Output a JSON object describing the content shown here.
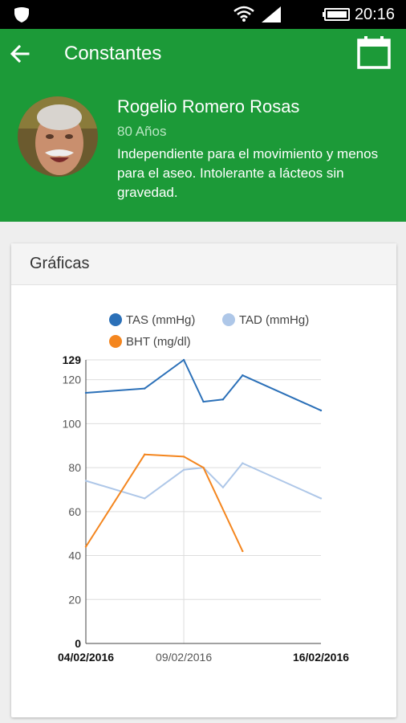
{
  "status_bar": {
    "time": "20:16"
  },
  "app_bar": {
    "title": "Constantes"
  },
  "patient": {
    "name": "Rogelio Romero Rosas",
    "age": "80 Años",
    "notes": "Independiente para el movimiento y menos para el aseo. Intolerante a lácteos sin gravedad."
  },
  "card": {
    "title": "Gráficas"
  },
  "chart_data": {
    "type": "line",
    "x_tick_labels": [
      "04/02/2016",
      "09/02/2016",
      "16/02/2016"
    ],
    "y_ticks": [
      0,
      20,
      40,
      60,
      80,
      100,
      120,
      129
    ],
    "ylim": [
      0,
      129
    ],
    "xlim": [
      "2016-02-04",
      "2016-02-16"
    ],
    "grid": true,
    "legend_position": "top",
    "series": [
      {
        "name": "TAS (mmHg)",
        "color": "#2b70b8",
        "points": [
          {
            "x": "2016-02-04",
            "y": 114
          },
          {
            "x": "2016-02-07",
            "y": 116
          },
          {
            "x": "2016-02-09",
            "y": 129
          },
          {
            "x": "2016-02-10",
            "y": 110
          },
          {
            "x": "2016-02-11",
            "y": 111
          },
          {
            "x": "2016-02-12",
            "y": 122
          },
          {
            "x": "2016-02-16",
            "y": 106
          }
        ]
      },
      {
        "name": "TAD (mmHg)",
        "color": "#aec7e8",
        "points": [
          {
            "x": "2016-02-04",
            "y": 74
          },
          {
            "x": "2016-02-07",
            "y": 66
          },
          {
            "x": "2016-02-09",
            "y": 79
          },
          {
            "x": "2016-02-10",
            "y": 80
          },
          {
            "x": "2016-02-11",
            "y": 71
          },
          {
            "x": "2016-02-12",
            "y": 82
          },
          {
            "x": "2016-02-16",
            "y": 66
          }
        ]
      },
      {
        "name": "BHT (mg/dl)",
        "color": "#f4861f",
        "points": [
          {
            "x": "2016-02-04",
            "y": 44
          },
          {
            "x": "2016-02-07",
            "y": 86
          },
          {
            "x": "2016-02-09",
            "y": 85
          },
          {
            "x": "2016-02-10",
            "y": 80
          },
          {
            "x": "2016-02-12",
            "y": 42
          }
        ]
      }
    ]
  }
}
